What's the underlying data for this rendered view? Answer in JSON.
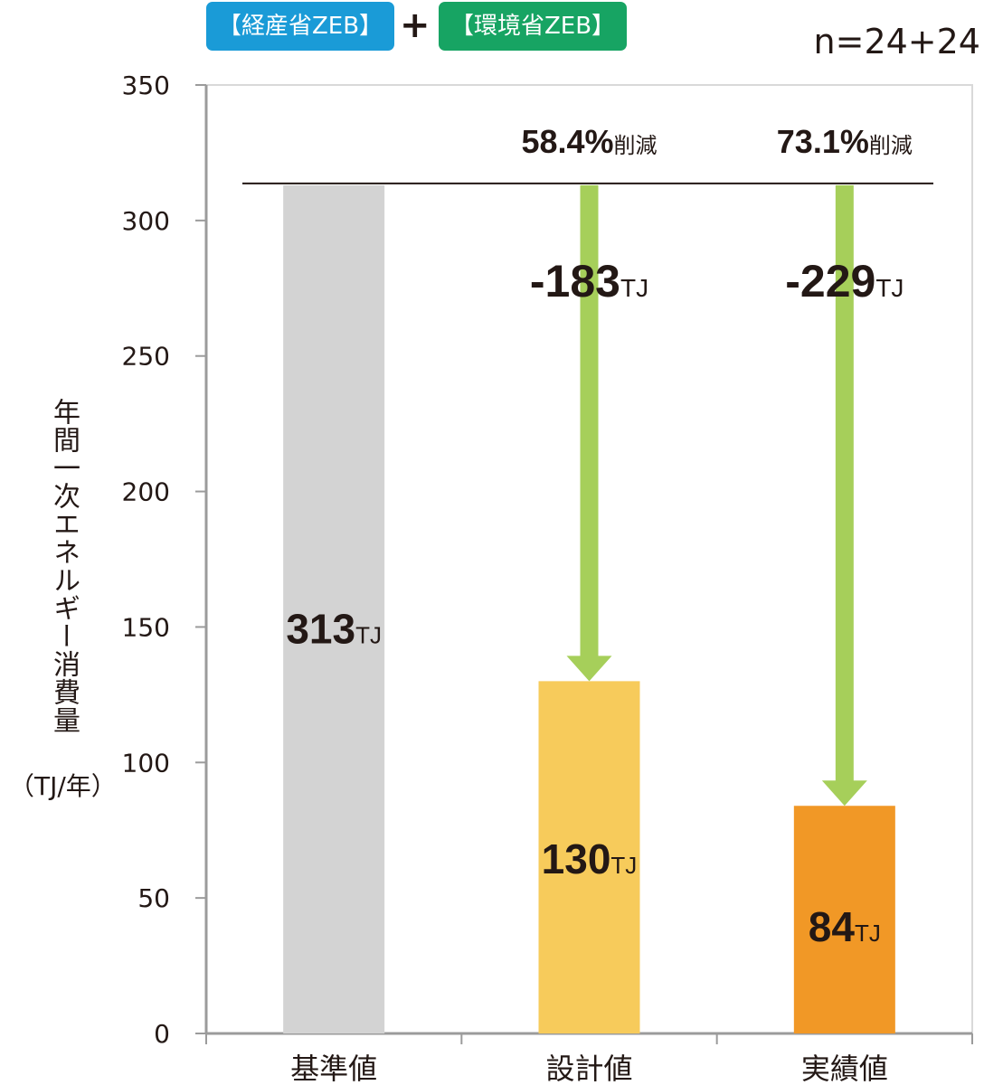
{
  "header": {
    "badge_meti": "【経産省ZEB】",
    "plus": "+",
    "badge_env": "【環境省ZEB】",
    "n_label": "n=24+24",
    "badge_meti_color": "#1a9bd7",
    "badge_env_color": "#17a463"
  },
  "chart_data": {
    "type": "bar",
    "categories": [
      "基準値",
      "設計値",
      "実績値"
    ],
    "values": [
      313,
      130,
      84
    ],
    "bar_colors": [
      "#d3d3d3",
      "#f7cb5b",
      "#f19826"
    ],
    "value_labels": [
      {
        "number": "313",
        "unit": "TJ"
      },
      {
        "number": "130",
        "unit": "TJ"
      },
      {
        "number": "84",
        "unit": "TJ"
      }
    ],
    "ylabel": "年間一次エネルギー消費量",
    "ylabel_unit": "（TJ/年）",
    "ylim": [
      0,
      350
    ],
    "yticks": [
      0,
      50,
      100,
      150,
      200,
      250,
      300,
      350
    ],
    "grid": false,
    "baseline_value": 313,
    "reductions": [
      {
        "category": "設計値",
        "amount_number": "-183",
        "amount_unit": "TJ",
        "percent": "58.4%",
        "suffix": "削減"
      },
      {
        "category": "実績値",
        "amount_number": "-229",
        "amount_unit": "TJ",
        "percent": "73.1%",
        "suffix": "削減"
      }
    ],
    "arrow_color": "#a6cf5a",
    "axis_color": "#9b9b9b"
  }
}
